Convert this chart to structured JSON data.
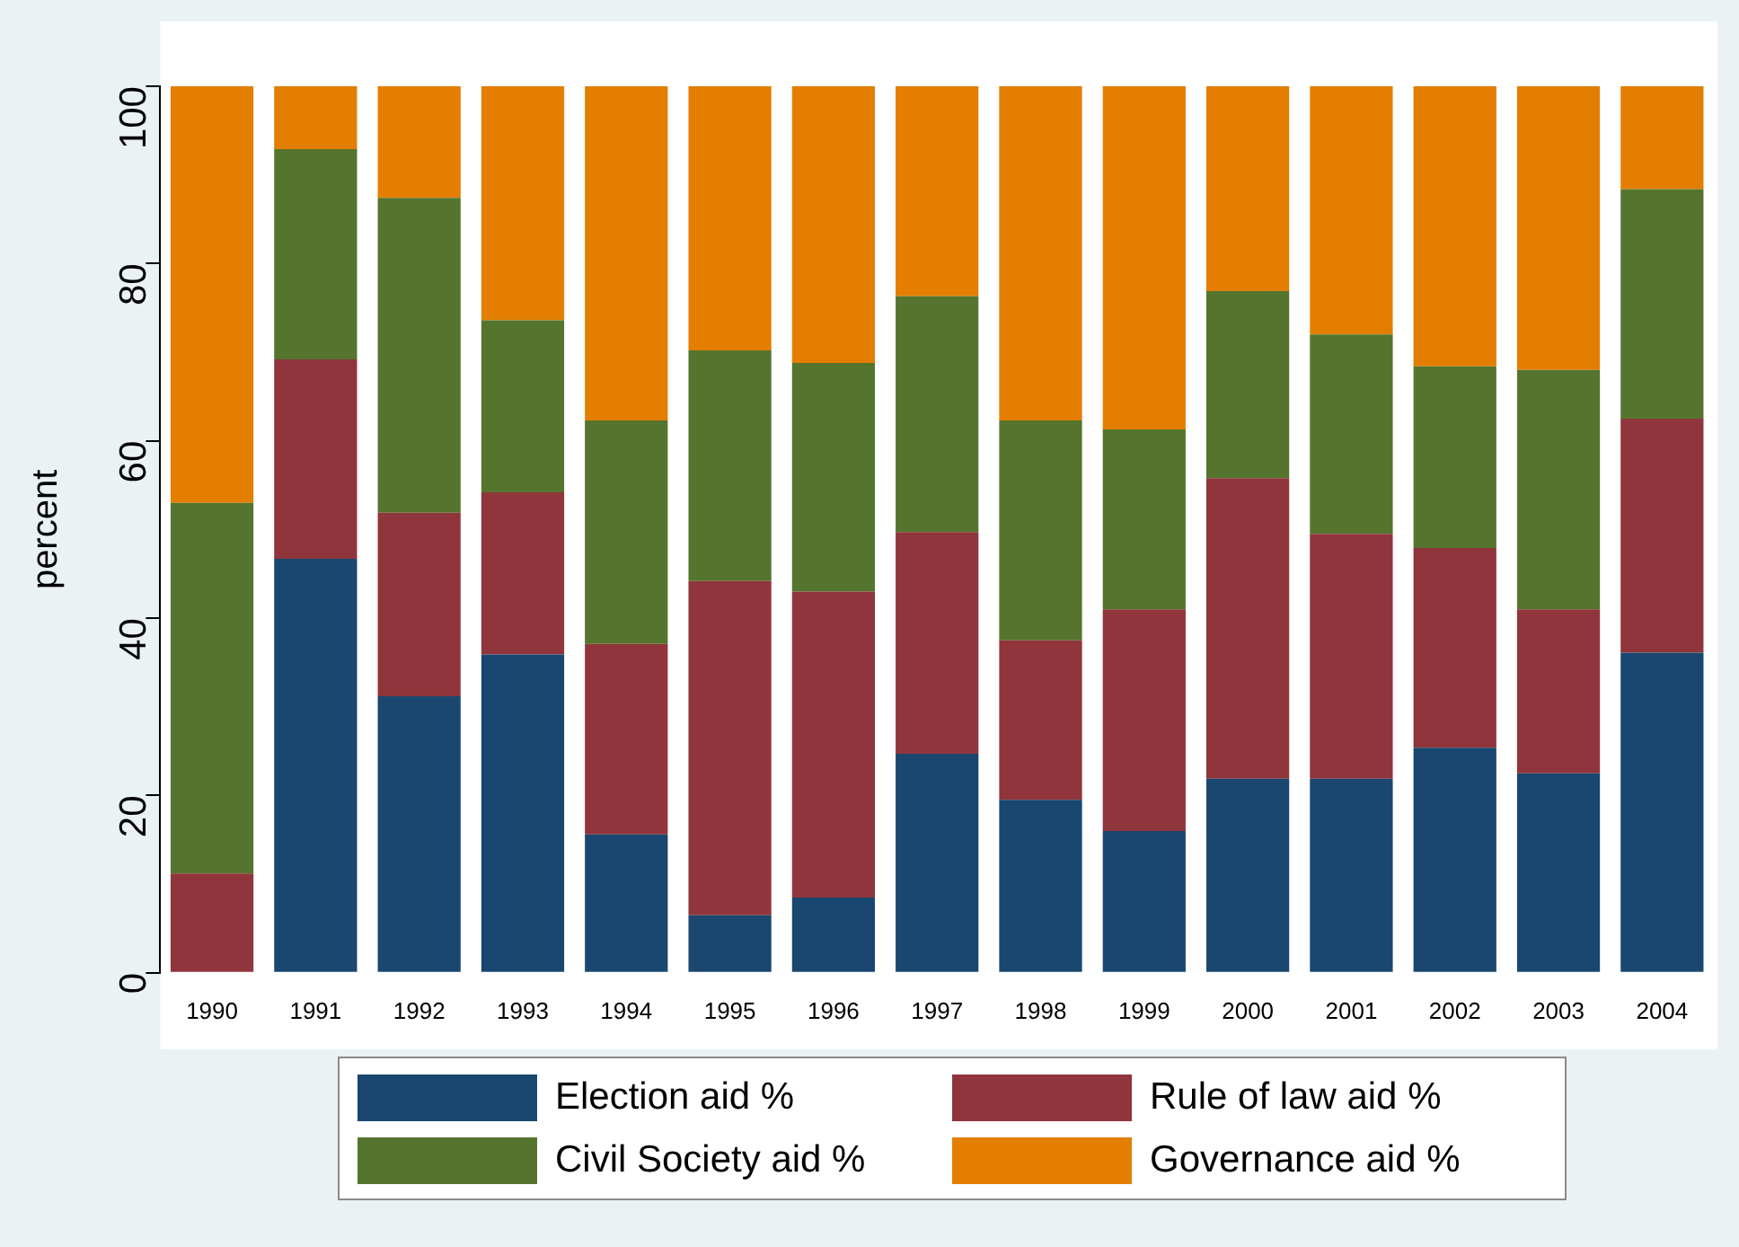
{
  "chart_data": {
    "type": "bar",
    "stacked": true,
    "ylabel": "percent",
    "categories": [
      "1990",
      "1991",
      "1992",
      "1993",
      "1994",
      "1995",
      "1996",
      "1997",
      "1998",
      "1999",
      "2000",
      "2001",
      "2002",
      "2003",
      "2004"
    ],
    "ylim": [
      0,
      100
    ],
    "yticks": [
      0,
      20,
      40,
      60,
      80,
      100
    ],
    "grid": false,
    "legend": "bottom",
    "series": [
      {
        "name": "Election aid %",
        "color": "#1a476f",
        "values": [
          0,
          46.7,
          31.2,
          35.9,
          15.6,
          6.5,
          8.5,
          24.7,
          19.5,
          16,
          21.9,
          21.9,
          25.4,
          22.5,
          36.1
        ]
      },
      {
        "name": "Rule of law aid %",
        "color": "#90353b",
        "values": [
          11.2,
          22.5,
          20.7,
          18.3,
          21.5,
          37.7,
          34.5,
          25,
          18,
          25,
          33.9,
          27.6,
          22.5,
          18.5,
          26.4
        ]
      },
      {
        "name": "Civil Society aid %",
        "color": "#55752f",
        "values": [
          41.8,
          23.7,
          35.5,
          19.4,
          25.2,
          26,
          25.8,
          26.6,
          24.8,
          20.3,
          21.1,
          22.5,
          20.5,
          27,
          25.9
        ]
      },
      {
        "name": "Governance aid %",
        "color": "#e37e00",
        "values": [
          47,
          7.1,
          12.6,
          26.4,
          37.7,
          29.8,
          31.2,
          23.7,
          37.7,
          38.7,
          23.1,
          28,
          31.6,
          32,
          11.6
        ]
      }
    ]
  }
}
